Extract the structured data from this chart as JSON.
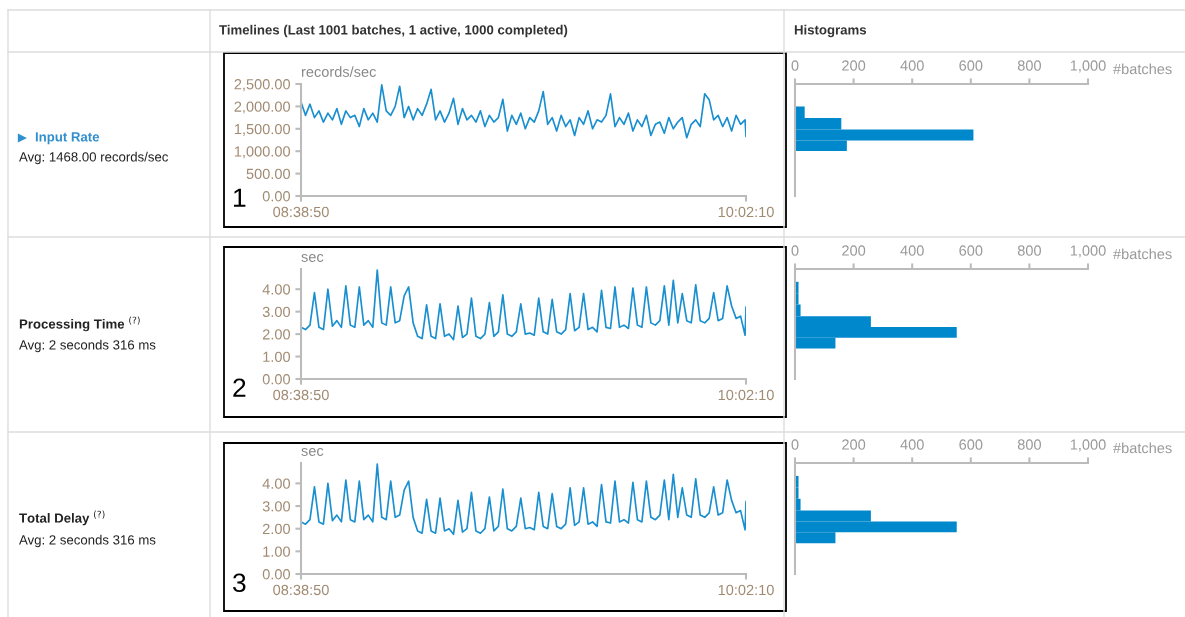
{
  "chart_data": [
    {
      "type": "line",
      "title": "Timelines (Last 1001 batches, 1 active, 1000 completed)",
      "ylabel": "records/sec",
      "annotations": [
        "Input Rate",
        "Avg: 1468.00 records/sec",
        "1"
      ],
      "x": [
        8.6472,
        8.6612,
        8.6752,
        8.6892,
        8.7032,
        8.7172,
        8.7312,
        8.7452,
        8.7592,
        8.7732,
        8.7872,
        8.8012,
        8.8152,
        8.8292,
        8.8432,
        8.8572,
        8.8712,
        8.8852,
        8.8992,
        8.9132,
        8.9272,
        8.9412,
        8.9552,
        8.9692,
        8.9832,
        8.9972,
        9.0112,
        9.0252,
        9.0392,
        9.0532,
        9.0672,
        9.0812,
        9.0952,
        9.1092,
        9.1232,
        9.1372,
        9.1512,
        9.1652,
        9.1792,
        9.1932,
        9.2072,
        9.2212,
        9.2352,
        9.2492,
        9.2632,
        9.2772,
        9.2912,
        9.3052,
        9.3192,
        9.3332,
        9.3472,
        9.3612,
        9.3752,
        9.3892,
        9.4032,
        9.4172,
        9.4312,
        9.4452,
        9.4592,
        9.4732,
        9.4872,
        9.5012,
        9.5152,
        9.5292,
        9.5432,
        9.5572,
        9.5712,
        9.5852,
        9.5992,
        9.6132,
        9.6272,
        9.6412,
        9.6552,
        9.6692,
        9.6832,
        9.6972,
        9.7112,
        9.7252,
        9.7392,
        9.7532,
        9.7672,
        9.7812,
        9.7952,
        9.8092,
        9.8232,
        9.8372,
        9.8512,
        9.8652,
        9.8792,
        9.8932,
        9.9072,
        9.9212,
        9.9352,
        9.9492,
        9.9632,
        9.9772,
        9.9912,
        10.0052,
        10.0192,
        10.0332,
        10.0361
      ],
      "series": [
        {
          "color": "#1a8fd0",
          "values": [
            2100,
            1800,
            2050,
            1750,
            1900,
            1650,
            1850,
            1700,
            1950,
            1600,
            1900,
            1750,
            1800,
            1550,
            1950,
            1700,
            1850,
            1650,
            2480,
            1900,
            1800,
            2000,
            2450,
            1750,
            2000,
            1700,
            1950,
            1800,
            2050,
            2380,
            1700,
            1900,
            1650,
            1850,
            2180,
            1600,
            1950,
            1700,
            1800,
            1650,
            1900,
            1550,
            1800,
            1650,
            1750,
            2160,
            1450,
            1800,
            1600,
            1850,
            1500,
            1750,
            1650,
            1900,
            2330,
            1600,
            1750,
            1450,
            1800,
            1550,
            1700,
            1350,
            1750,
            1600,
            1900,
            1500,
            1700,
            1650,
            1800,
            2280,
            1550,
            1750,
            1600,
            1850,
            1450,
            1700,
            1550,
            1800,
            1350,
            1600,
            1650,
            1400,
            1750,
            1500,
            1650,
            1750,
            1300,
            1600,
            1700,
            1550,
            2280,
            2150,
            1700,
            1800,
            1550,
            1750,
            1450,
            1800,
            1600,
            1700,
            1330
          ]
        }
      ],
      "xlim": [
        8.6472,
        10.0361
      ],
      "xticks": [
        {
          "value": 8.6472,
          "label": "08:38:50"
        },
        {
          "value": 10.0361,
          "label": "10:02:10"
        }
      ],
      "ylim": [
        0,
        2500
      ],
      "yticks": [
        {
          "value": 0,
          "label": "0.00"
        },
        {
          "value": 500,
          "label": "500.00"
        },
        {
          "value": 1000,
          "label": "1,000.00"
        },
        {
          "value": 1500,
          "label": "1,500.00"
        },
        {
          "value": 2000,
          "label": "2,000.00"
        },
        {
          "value": 2500,
          "label": "2,500.00"
        }
      ]
    },
    {
      "type": "histogram",
      "title": "Histograms",
      "xlabel": "#batches",
      "orientation": "horizontal",
      "color": "#0088cc",
      "bins": [
        745,
        1003,
        1239,
        1482,
        1741,
        1998,
        2240,
        2493
      ],
      "values": [
        3,
        177,
        609,
        158,
        33,
        3,
        3
      ],
      "xlim": [
        0,
        1000
      ],
      "xticks": [
        0,
        200,
        400,
        600,
        800,
        {
          "value": 1000,
          "label": "1,000"
        }
      ],
      "ylim": [
        0,
        2500
      ],
      "tick_labels": "x"
    },
    {
      "type": "line",
      "ylabel": "sec",
      "annotations": [
        "Processing Time $^{(?)}$",
        "Avg: 2 seconds 316 ms",
        "2"
      ],
      "x": [
        8.6472,
        8.6612,
        8.6752,
        8.6892,
        8.7032,
        8.7172,
        8.7312,
        8.7452,
        8.7592,
        8.7732,
        8.7872,
        8.8012,
        8.8152,
        8.8292,
        8.8432,
        8.8572,
        8.8712,
        8.8852,
        8.8992,
        8.9132,
        8.9272,
        8.9412,
        8.9552,
        8.9692,
        8.9832,
        8.9972,
        9.0112,
        9.0252,
        9.0392,
        9.0532,
        9.0672,
        9.0812,
        9.0952,
        9.1092,
        9.1232,
        9.1372,
        9.1512,
        9.1652,
        9.1792,
        9.1932,
        9.2072,
        9.2212,
        9.2352,
        9.2492,
        9.2632,
        9.2772,
        9.2912,
        9.3052,
        9.3192,
        9.3332,
        9.3472,
        9.3612,
        9.3752,
        9.3892,
        9.4032,
        9.4172,
        9.4312,
        9.4452,
        9.4592,
        9.4732,
        9.4872,
        9.5012,
        9.5152,
        9.5292,
        9.5432,
        9.5572,
        9.5712,
        9.5852,
        9.5992,
        9.6132,
        9.6272,
        9.6412,
        9.6552,
        9.6692,
        9.6832,
        9.6972,
        9.7112,
        9.7252,
        9.7392,
        9.7532,
        9.7672,
        9.7812,
        9.7952,
        9.8092,
        9.8232,
        9.8372,
        9.8512,
        9.8652,
        9.8792,
        9.8932,
        9.9072,
        9.9212,
        9.9352,
        9.9492,
        9.9632,
        9.9772,
        9.9912,
        10.0052,
        10.0192,
        10.0332,
        10.0361
      ],
      "series": [
        {
          "color": "#1a8fd0",
          "values": [
            2.3,
            2.2,
            2.4,
            3.85,
            2.3,
            2.2,
            4.0,
            2.35,
            2.6,
            2.3,
            4.15,
            2.4,
            2.3,
            4.1,
            2.4,
            2.6,
            2.3,
            4.85,
            2.5,
            2.4,
            4.1,
            2.5,
            2.6,
            3.7,
            4.1,
            2.5,
            1.9,
            1.8,
            3.3,
            1.9,
            1.8,
            3.35,
            1.9,
            2.0,
            1.75,
            3.25,
            1.85,
            2.0,
            3.6,
            1.9,
            1.8,
            2.0,
            3.4,
            1.9,
            2.1,
            3.75,
            2.0,
            1.9,
            2.1,
            3.35,
            2.0,
            2.05,
            1.95,
            3.6,
            2.1,
            2.0,
            3.55,
            2.1,
            2.0,
            2.2,
            3.8,
            2.15,
            2.3,
            3.8,
            2.2,
            2.3,
            2.1,
            3.95,
            2.3,
            2.25,
            4.1,
            2.3,
            2.4,
            2.25,
            4.05,
            2.4,
            2.3,
            4.1,
            2.5,
            2.4,
            2.6,
            4.15,
            2.4,
            4.4,
            2.5,
            3.8,
            2.6,
            2.5,
            4.2,
            2.6,
            2.5,
            2.7,
            3.85,
            2.6,
            2.7,
            4.15,
            3.25,
            2.7,
            2.8,
            1.95,
            3.2
          ]
        }
      ],
      "xlim": [
        8.6472,
        10.0361
      ],
      "xticks": [
        {
          "value": 8.6472,
          "label": "08:38:50"
        },
        {
          "value": 10.0361,
          "label": "10:02:10"
        }
      ],
      "ylim": [
        0,
        4.9
      ],
      "yticks": [
        {
          "value": 0,
          "label": "0.00"
        },
        {
          "value": 1,
          "label": "1.00"
        },
        {
          "value": 2,
          "label": "2.00"
        },
        {
          "value": 3,
          "label": "3.00"
        },
        {
          "value": 4,
          "label": "4.00"
        }
      ]
    },
    {
      "type": "histogram",
      "xlabel": "#batches",
      "orientation": "horizontal",
      "color": "#0088cc",
      "bins": [
        1.36,
        1.84,
        2.32,
        2.8,
        3.32,
        3.82,
        4.33,
        4.82
      ],
      "values": [
        138,
        552,
        259,
        19,
        12,
        12,
        3
      ],
      "xlim": [
        0,
        1000
      ],
      "xticks": [
        0,
        200,
        400,
        600,
        800,
        {
          "value": 1000,
          "label": "1,000"
        }
      ],
      "ylim": [
        0,
        4.9
      ],
      "tick_labels": "x"
    },
    {
      "type": "line",
      "ylabel": "sec",
      "annotations": [
        "Total Delay $^{(?)}$",
        "Avg: 2 seconds 316 ms",
        "3"
      ],
      "x": [
        8.6472,
        8.6612,
        8.6752,
        8.6892,
        8.7032,
        8.7172,
        8.7312,
        8.7452,
        8.7592,
        8.7732,
        8.7872,
        8.8012,
        8.8152,
        8.8292,
        8.8432,
        8.8572,
        8.8712,
        8.8852,
        8.8992,
        8.9132,
        8.9272,
        8.9412,
        8.9552,
        8.9692,
        8.9832,
        8.9972,
        9.0112,
        9.0252,
        9.0392,
        9.0532,
        9.0672,
        9.0812,
        9.0952,
        9.1092,
        9.1232,
        9.1372,
        9.1512,
        9.1652,
        9.1792,
        9.1932,
        9.2072,
        9.2212,
        9.2352,
        9.2492,
        9.2632,
        9.2772,
        9.2912,
        9.3052,
        9.3192,
        9.3332,
        9.3472,
        9.3612,
        9.3752,
        9.3892,
        9.4032,
        9.4172,
        9.4312,
        9.4452,
        9.4592,
        9.4732,
        9.4872,
        9.5012,
        9.5152,
        9.5292,
        9.5432,
        9.5572,
        9.5712,
        9.5852,
        9.5992,
        9.6132,
        9.6272,
        9.6412,
        9.6552,
        9.6692,
        9.6832,
        9.6972,
        9.7112,
        9.7252,
        9.7392,
        9.7532,
        9.7672,
        9.7812,
        9.7952,
        9.8092,
        9.8232,
        9.8372,
        9.8512,
        9.8652,
        9.8792,
        9.8932,
        9.9072,
        9.9212,
        9.9352,
        9.9492,
        9.9632,
        9.9772,
        9.9912,
        10.0052,
        10.0192,
        10.0332,
        10.0361
      ],
      "series": [
        {
          "color": "#1a8fd0",
          "values": [
            2.3,
            2.2,
            2.4,
            3.85,
            2.3,
            2.2,
            4.0,
            2.35,
            2.6,
            2.3,
            4.15,
            2.4,
            2.3,
            4.1,
            2.4,
            2.6,
            2.3,
            4.85,
            2.5,
            2.4,
            4.1,
            2.5,
            2.6,
            3.7,
            4.1,
            2.5,
            1.9,
            1.8,
            3.3,
            1.9,
            1.8,
            3.35,
            1.9,
            2.0,
            1.75,
            3.25,
            1.85,
            2.0,
            3.6,
            1.9,
            1.8,
            2.0,
            3.4,
            1.9,
            2.1,
            3.75,
            2.0,
            1.9,
            2.1,
            3.35,
            2.0,
            2.05,
            1.95,
            3.6,
            2.1,
            2.0,
            3.55,
            2.1,
            2.0,
            2.2,
            3.8,
            2.15,
            2.3,
            3.8,
            2.2,
            2.3,
            2.1,
            3.95,
            2.3,
            2.25,
            4.1,
            2.3,
            2.4,
            2.25,
            4.05,
            2.4,
            2.3,
            4.1,
            2.5,
            2.4,
            2.6,
            4.15,
            2.4,
            4.4,
            2.5,
            3.8,
            2.6,
            2.5,
            4.2,
            2.6,
            2.5,
            2.7,
            3.85,
            2.6,
            2.7,
            4.15,
            3.25,
            2.7,
            2.8,
            1.95,
            3.2
          ]
        }
      ],
      "xlim": [
        8.6472,
        10.0361
      ],
      "xticks": [
        {
          "value": 8.6472,
          "label": "08:38:50"
        },
        {
          "value": 10.0361,
          "label": "10:02:10"
        }
      ],
      "ylim": [
        0,
        4.9
      ],
      "yticks": [
        {
          "value": 0,
          "label": "0.00"
        },
        {
          "value": 1,
          "label": "1.00"
        },
        {
          "value": 2,
          "label": "2.00"
        },
        {
          "value": 3,
          "label": "3.00"
        },
        {
          "value": 4,
          "label": "4.00"
        }
      ]
    },
    {
      "type": "histogram",
      "xlabel": "#batches",
      "orientation": "horizontal",
      "color": "#0088cc",
      "bins": [
        1.36,
        1.84,
        2.32,
        2.8,
        3.32,
        3.82,
        4.33,
        4.82
      ],
      "values": [
        138,
        552,
        259,
        19,
        12,
        12,
        3
      ],
      "xlim": [
        0,
        1000
      ],
      "xticks": [
        0,
        200,
        400,
        600,
        800,
        {
          "value": 1000,
          "label": "1,000"
        }
      ],
      "ylim": [
        0,
        4.9
      ],
      "tick_labels": "x"
    }
  ]
}
